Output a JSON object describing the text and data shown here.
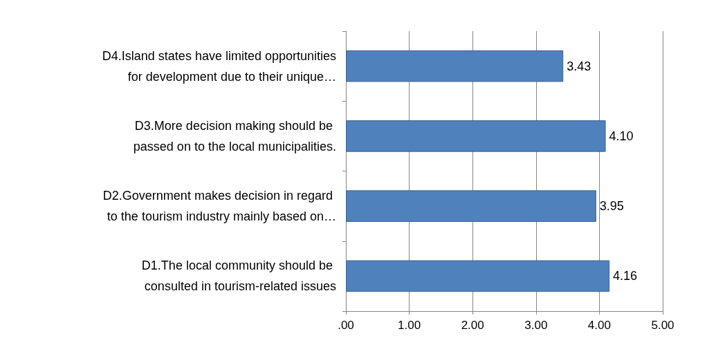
{
  "chart_data": {
    "type": "bar",
    "orientation": "horizontal",
    "categories": [
      "D4.Island states have limited opportunities for development due to their unique…",
      "D3.More decision making should be passed on to the local municipalities.",
      "D2.Government makes decision in regard to the tourism industry mainly based on…",
      "D1.The local community should be consulted in tourism-related issues"
    ],
    "values": [
      3.43,
      4.1,
      3.95,
      4.16
    ],
    "value_labels": [
      "3.43",
      "4.10",
      "3.95",
      "4.16"
    ],
    "color": "#4f81bd",
    "xlim": [
      0,
      5
    ],
    "xticks": [
      {
        "value": 0,
        "label": ".00"
      },
      {
        "value": 1,
        "label": "1.00"
      },
      {
        "value": 2,
        "label": "2.00"
      },
      {
        "value": 3,
        "label": "3.00"
      },
      {
        "value": 4,
        "label": "4.00"
      },
      {
        "value": 5,
        "label": "5.00"
      }
    ],
    "grid": "x"
  }
}
